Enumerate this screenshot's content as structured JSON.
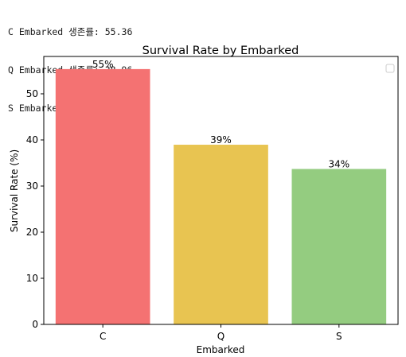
{
  "console_output": [
    "C Embarked 생존률: 55.36",
    "Q Embarked 생존률: 38.96",
    "S Embarked 생존률: 33.7"
  ],
  "chart_data": {
    "type": "bar",
    "title": "Survival Rate by Embarked",
    "xlabel": "Embarked",
    "ylabel": "Survival Rate (%)",
    "categories": [
      "C",
      "Q",
      "S"
    ],
    "values": [
      55.36,
      38.96,
      33.7
    ],
    "data_labels": [
      "55%",
      "39%",
      "34%"
    ],
    "colors": [
      "#f47272",
      "#e8c451",
      "#94cc80"
    ],
    "ylim": [
      0,
      58.1
    ],
    "yticks": [
      0,
      10,
      20,
      30,
      40,
      50
    ],
    "grid": false,
    "legend": "top-right (empty)"
  }
}
